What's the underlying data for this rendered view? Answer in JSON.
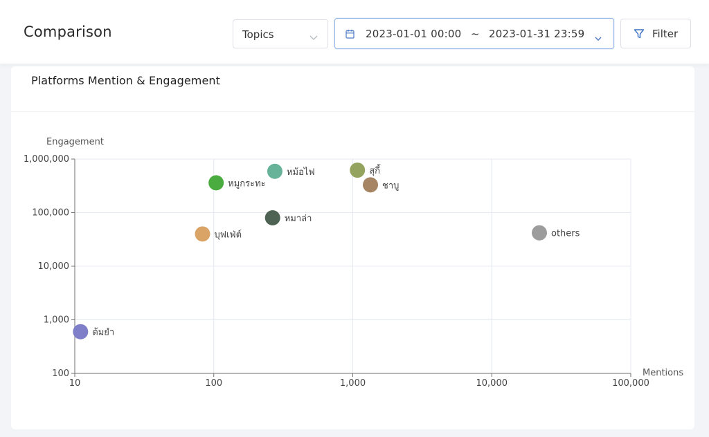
{
  "header": {
    "title": "Comparison",
    "topic_select": {
      "value": "Topics"
    },
    "date_range": {
      "start": "2023-01-01 00:00",
      "separator": "~",
      "end": "2023-01-31 23:59"
    },
    "filter_label": "Filter"
  },
  "card": {
    "title": "Platforms Mention & Engagement"
  },
  "chart_data": {
    "type": "scatter",
    "title": "Platforms Mention & Engagement",
    "xlabel": "Mentions",
    "ylabel": "Engagement",
    "xscale": "log",
    "yscale": "log",
    "xlim": [
      10,
      100000
    ],
    "ylim": [
      100,
      1000000
    ],
    "xticks": [
      10,
      100,
      1000,
      10000,
      100000
    ],
    "yticks": [
      100,
      1000,
      10000,
      100000,
      1000000
    ],
    "xtick_labels": [
      "10",
      "100",
      "1,000",
      "10,000",
      "100,000"
    ],
    "ytick_labels": [
      "100",
      "1,000",
      "10,000",
      "100,000",
      "1,000,000"
    ],
    "grid": true,
    "points": [
      {
        "label": "ต้มยำ",
        "x": 11,
        "y": 600,
        "color": "#7f7fc9"
      },
      {
        "label": "บุฟเฟ่ต์",
        "x": 83,
        "y": 40000,
        "color": "#dba467"
      },
      {
        "label": "หมูกระทะ",
        "x": 104,
        "y": 360000,
        "color": "#4aab3f"
      },
      {
        "label": "หมาล่า",
        "x": 265,
        "y": 80000,
        "color": "#4e6354"
      },
      {
        "label": "หม้อไฟ",
        "x": 275,
        "y": 590000,
        "color": "#67b39a"
      },
      {
        "label": "สุกี้",
        "x": 1080,
        "y": 620000,
        "color": "#94a45e"
      },
      {
        "label": "ชาบู",
        "x": 1340,
        "y": 330000,
        "color": "#a58564"
      },
      {
        "label": "others",
        "x": 22000,
        "y": 42000,
        "color": "#9c9c9c"
      }
    ]
  }
}
